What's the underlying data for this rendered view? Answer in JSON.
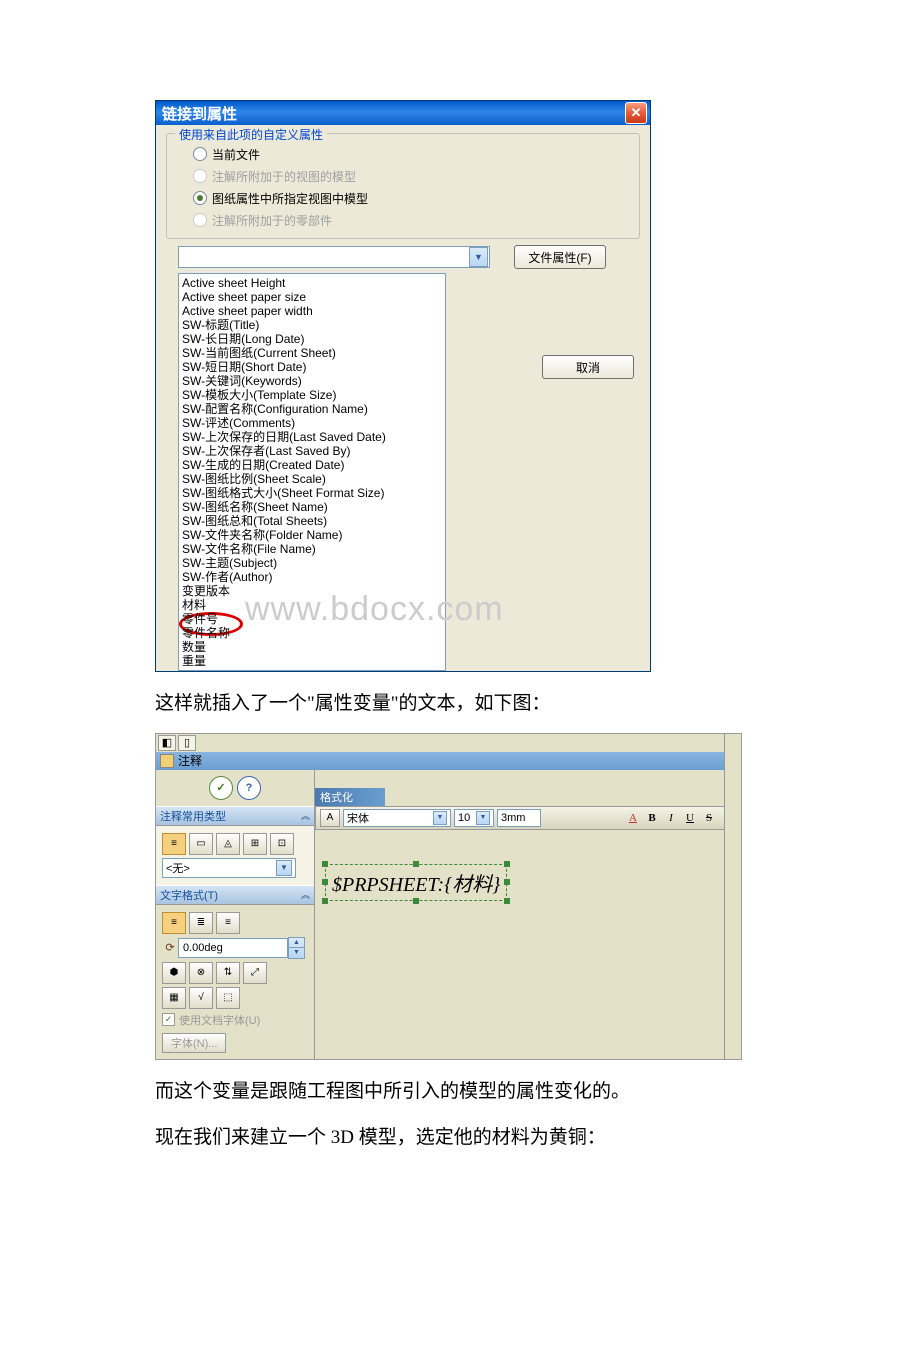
{
  "dialog": {
    "title": "链接到属性",
    "group_legend": "使用来自此项的自定义属性",
    "radios": [
      {
        "label": "当前文件",
        "enabled": true,
        "selected": false
      },
      {
        "label": "注解所附加于的视图的模型",
        "enabled": false,
        "selected": false
      },
      {
        "label": "图纸属性中所指定视图中模型",
        "enabled": true,
        "selected": true
      },
      {
        "label": "注解所附加于的零部件",
        "enabled": false,
        "selected": false
      }
    ],
    "file_props_btn": "文件属性(F)",
    "cancel_btn": "取消",
    "list_items": [
      "Active sheet Height",
      "Active sheet paper size",
      "Active sheet paper width",
      "SW-标题(Title)",
      "SW-长日期(Long Date)",
      "SW-当前图纸(Current Sheet)",
      "SW-短日期(Short Date)",
      "SW-关键词(Keywords)",
      "SW-模板大小(Template Size)",
      "SW-配置名称(Configuration Name)",
      "SW-评述(Comments)",
      "SW-上次保存的日期(Last Saved Date)",
      "SW-上次保存者(Last Saved By)",
      "SW-生成的日期(Created Date)",
      "SW-图纸比例(Sheet Scale)",
      "SW-图纸格式大小(Sheet Format Size)",
      "SW-图纸名称(Sheet Name)",
      "SW-图纸总和(Total Sheets)",
      "SW-文件夹名称(Folder Name)",
      "SW-文件名称(File Name)",
      "SW-主题(Subject)",
      "SW-作者(Author)",
      "变更版本",
      "材料",
      "零件号",
      "零件名称",
      "数量",
      "重量"
    ],
    "circled_index": 23
  },
  "watermark": "www.bdocx.com",
  "para1": "这样就插入了一个\"属性变量\"的文本，如下图：",
  "para2": "而这个变量是跟随工程图中所引入的模型的属性变化的。",
  "para3": "现在我们来建立一个 3D 模型，选定他的材料为黄铜：",
  "panel": {
    "title": "注释",
    "section1": "注释常用类型",
    "none_value": "<无>",
    "section2": "文字格式(T)",
    "angle_value": "0.00deg",
    "use_doc_font": "使用文档字体(U)",
    "font_btn": "字体(N)..."
  },
  "format": {
    "title": "格式化",
    "font_name": "宋体",
    "font_size": "10",
    "unit": "3mm"
  },
  "note_text": "$PRPSHEET:{材料}"
}
